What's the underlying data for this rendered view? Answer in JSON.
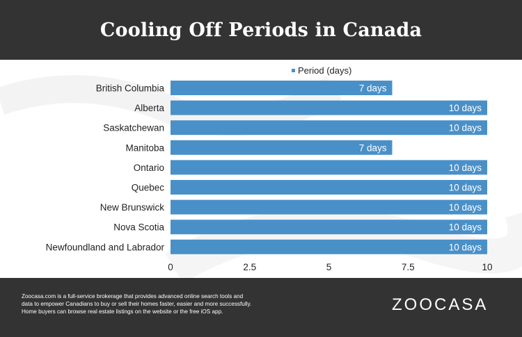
{
  "header": {
    "title": "Cooling Off Periods in Canada"
  },
  "colors": {
    "bar": "#4a90c8",
    "header_bg": "#333333",
    "footer_bg": "#333333"
  },
  "chart_data": {
    "type": "bar",
    "orientation": "horizontal",
    "title": "Cooling Off Periods in Canada",
    "categories": [
      "British Columbia",
      "Alberta",
      "Saskatchewan",
      "Manitoba",
      "Ontario",
      "Quebec",
      "New Brunswick",
      "Nova Scotia",
      "Newfoundland and Labrador"
    ],
    "series": [
      {
        "name": "Period (days)",
        "values": [
          7,
          10,
          10,
          7,
          10,
          10,
          10,
          10,
          10
        ],
        "data_labels": [
          "7 days",
          "10 days",
          "10 days",
          "7 days",
          "10 days",
          "10 days",
          "10 days",
          "10 days",
          "10 days"
        ]
      }
    ],
    "xlim": [
      0,
      10
    ],
    "xticks": [
      "0",
      "2.5",
      "5",
      "7.5",
      "10"
    ],
    "grid": false,
    "legend": "top"
  },
  "footer": {
    "lines": [
      "Zoocasa.com is a full-service brokerage that provides advanced online search tools and",
      "data to empower Canadians to buy or sell their homes faster, easier and more successfully.",
      "Home buyers can browse real estate listings on the website or the free iOS app."
    ],
    "logo": "ZOOCASA"
  }
}
